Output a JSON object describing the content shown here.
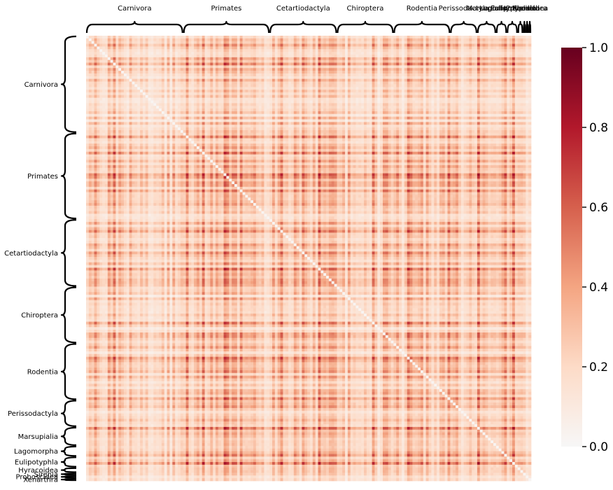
{
  "chart_data": {
    "type": "heatmap",
    "title": "",
    "xlabel": "",
    "ylabel": "",
    "groups": [
      {
        "name": "Carnivora",
        "count": 36
      },
      {
        "name": "Primates",
        "count": 32
      },
      {
        "name": "Cetartiodactyla",
        "count": 25
      },
      {
        "name": "Chiroptera",
        "count": 21
      },
      {
        "name": "Rodentia",
        "count": 21
      },
      {
        "name": "Perissodactyla",
        "count": 10
      },
      {
        "name": "Marsupialia",
        "count": 7
      },
      {
        "name": "Lagomorpha",
        "count": 4
      },
      {
        "name": "Eulipotyphla",
        "count": 4
      },
      {
        "name": "Hyracoidea",
        "count": 2
      },
      {
        "name": "Sirenia",
        "count": 1
      },
      {
        "name": "Proboscidea",
        "count": 1
      },
      {
        "name": "Xenarthra",
        "count": 1
      }
    ],
    "colorbar": {
      "min": 0.0,
      "max": 1.0,
      "ticks": [
        "0.0",
        "0.2",
        "0.4",
        "0.6",
        "0.8",
        "1.0"
      ],
      "colormap": [
        "#f7f7f7",
        "#fddbc7",
        "#f4a582",
        "#d6604d",
        "#b2182b",
        "#67001f"
      ]
    },
    "value_range": [
      0.0,
      1.0
    ],
    "values_note": "pairwise similarity matrix, mostly 0.0-0.3 with dark stripes near 0.5-0.7"
  }
}
